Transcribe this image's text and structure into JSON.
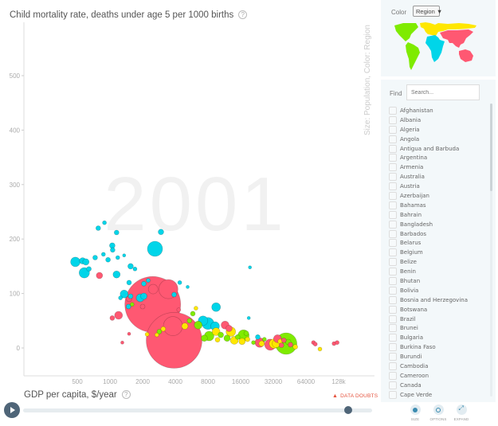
{
  "chart": {
    "y_title": "Child mortality rate, deaths under age 5 per 1000 births",
    "x_title": "GDP per capita, $/year",
    "side_label": "Size: Population, Color: Region",
    "year": "2001",
    "help_glyph": "?",
    "data_doubts": "DATA DOUBTS",
    "warn_glyph": "▲"
  },
  "timeline": {
    "play_label": "play",
    "position_year": "2001"
  },
  "sidebar": {
    "color_label": "Color",
    "color_select_value": "Region ▼",
    "find_label": "Find",
    "search_placeholder": "Search...",
    "countries": [
      "Afghanistan",
      "Albania",
      "Algeria",
      "Angola",
      "Antigua and Barbuda",
      "Argentina",
      "Armenia",
      "Australia",
      "Austria",
      "Azerbaijan",
      "Bahamas",
      "Bahrain",
      "Bangladesh",
      "Barbados",
      "Belarus",
      "Belgium",
      "Belize",
      "Benin",
      "Bhutan",
      "Bolivia",
      "Bosnia and Herzegovina",
      "Botswana",
      "Brazil",
      "Brunei",
      "Bulgaria",
      "Burkina Faso",
      "Burundi",
      "Cambodia",
      "Cameroon",
      "Canada",
      "Cape Verde"
    ],
    "buttons": {
      "size": "SIZE",
      "options": "OPTIONS",
      "expand": "EXPAND"
    }
  },
  "colors": {
    "africa": "#00d5e9",
    "asia": "#ff5872",
    "europe": "#ffe700",
    "americas": "#7feb00"
  },
  "chart_data": {
    "type": "scatter",
    "title": "Child mortality rate, deaths under age 5 per 1000 births",
    "xlabel": "GDP per capita, $/year",
    "ylabel": "Child mortality rate, deaths under age 5 per 1000 births",
    "x_scale": "log",
    "x_ticks": [
      500,
      1000,
      2000,
      4000,
      8000,
      16000,
      32000,
      64000,
      128000
    ],
    "x_tick_labels": [
      "500",
      "1000",
      "2000",
      "4000",
      "8000",
      "16000",
      "32000",
      "64000",
      "128k"
    ],
    "y_ticks": [
      0,
      100,
      200,
      300,
      400,
      500
    ],
    "xlim": [
      300,
      200000
    ],
    "ylim": [
      -50,
      600
    ],
    "size": "Population",
    "color": "Region",
    "year": 2001,
    "legend": [
      "africa",
      "asia",
      "europe",
      "americas"
    ],
    "points": [
      {
        "x": 890,
        "y": 230,
        "r": 2.5,
        "c": "africa"
      },
      {
        "x": 780,
        "y": 220,
        "r": 3,
        "c": "africa"
      },
      {
        "x": 1150,
        "y": 212,
        "r": 3,
        "c": "africa"
      },
      {
        "x": 2950,
        "y": 213,
        "r": 3.5,
        "c": "africa"
      },
      {
        "x": 2600,
        "y": 182,
        "r": 9.5,
        "c": "africa"
      },
      {
        "x": 1050,
        "y": 188,
        "r": 3.5,
        "c": "africa"
      },
      {
        "x": 1060,
        "y": 180,
        "r": 3,
        "c": "africa"
      },
      {
        "x": 1350,
        "y": 170,
        "r": 2,
        "c": "africa"
      },
      {
        "x": 730,
        "y": 166,
        "r": 3,
        "c": "africa"
      },
      {
        "x": 870,
        "y": 172,
        "r": 2.5,
        "c": "africa"
      },
      {
        "x": 960,
        "y": 162,
        "r": 3,
        "c": "africa"
      },
      {
        "x": 1180,
        "y": 166,
        "r": 2.5,
        "c": "africa"
      },
      {
        "x": 480,
        "y": 158,
        "r": 6,
        "c": "africa"
      },
      {
        "x": 560,
        "y": 160,
        "r": 4,
        "c": "africa"
      },
      {
        "x": 600,
        "y": 158,
        "r": 4,
        "c": "africa"
      },
      {
        "x": 1550,
        "y": 150,
        "r": 3.5,
        "c": "africa"
      },
      {
        "x": 1700,
        "y": 145,
        "r": 2.5,
        "c": "africa"
      },
      {
        "x": 580,
        "y": 138,
        "r": 6.5,
        "c": "africa"
      },
      {
        "x": 640,
        "y": 145,
        "r": 3,
        "c": "africa"
      },
      {
        "x": 800,
        "y": 133,
        "r": 4,
        "c": "asia"
      },
      {
        "x": 1150,
        "y": 135,
        "r": 4.5,
        "c": "africa"
      },
      {
        "x": 1500,
        "y": 120,
        "r": 3,
        "c": "africa"
      },
      {
        "x": 2050,
        "y": 118,
        "r": 3,
        "c": "africa"
      },
      {
        "x": 2250,
        "y": 124,
        "r": 2.5,
        "c": "africa"
      },
      {
        "x": 1350,
        "y": 99,
        "r": 5,
        "c": "africa"
      },
      {
        "x": 2500,
        "y": 108,
        "r": 6,
        "c": "asia"
      },
      {
        "x": 1250,
        "y": 92,
        "r": 2.5,
        "c": "africa"
      },
      {
        "x": 1550,
        "y": 95,
        "r": 3,
        "c": "africa"
      },
      {
        "x": 2480,
        "y": 80,
        "r": 35,
        "c": "asia"
      },
      {
        "x": 3450,
        "y": 108,
        "r": 12,
        "c": "asia"
      },
      {
        "x": 1900,
        "y": 92,
        "r": 5,
        "c": "africa"
      },
      {
        "x": 2050,
        "y": 95,
        "r": 4,
        "c": "africa"
      },
      {
        "x": 2000,
        "y": 76,
        "r": 3,
        "c": "asia"
      },
      {
        "x": 1500,
        "y": 90,
        "r": 3.5,
        "c": "asia"
      },
      {
        "x": 1480,
        "y": 76,
        "r": 3,
        "c": "africa"
      },
      {
        "x": 1600,
        "y": 80,
        "r": 2.5,
        "c": "americas"
      },
      {
        "x": 4400,
        "y": 120,
        "r": 2.5,
        "c": "africa"
      },
      {
        "x": 5200,
        "y": 112,
        "r": 2,
        "c": "africa"
      },
      {
        "x": 3900,
        "y": 98,
        "r": 3,
        "c": "africa"
      },
      {
        "x": 1050,
        "y": 55,
        "r": 3,
        "c": "asia"
      },
      {
        "x": 1200,
        "y": 60,
        "r": 5,
        "c": "asia"
      },
      {
        "x": 4300,
        "y": 70,
        "r": 2.5,
        "c": "asia"
      },
      {
        "x": 3800,
        "y": 40,
        "r": 12,
        "c": "asia"
      },
      {
        "x": 3900,
        "y": 14,
        "r": 35,
        "c": "asia"
      },
      {
        "x": 4900,
        "y": 40,
        "r": 4,
        "c": "europe"
      },
      {
        "x": 5800,
        "y": 63,
        "r": 3,
        "c": "americas"
      },
      {
        "x": 6200,
        "y": 73,
        "r": 2.5,
        "c": "europe"
      },
      {
        "x": 7200,
        "y": 50,
        "r": 6,
        "c": "africa"
      },
      {
        "x": 6500,
        "y": 42,
        "r": 5,
        "c": "americas"
      },
      {
        "x": 5400,
        "y": 50,
        "r": 3,
        "c": "americas"
      },
      {
        "x": 2850,
        "y": 30,
        "r": 3,
        "c": "americas"
      },
      {
        "x": 3100,
        "y": 35,
        "r": 3,
        "c": "europe"
      },
      {
        "x": 2700,
        "y": 24,
        "r": 2.5,
        "c": "europe"
      },
      {
        "x": 2200,
        "y": 25,
        "r": 2.5,
        "c": "europe"
      },
      {
        "x": 1500,
        "y": 26,
        "r": 2,
        "c": "asia"
      },
      {
        "x": 9500,
        "y": 75,
        "r": 5.5,
        "c": "africa"
      },
      {
        "x": 8000,
        "y": 45,
        "r": 7.5,
        "c": "africa"
      },
      {
        "x": 9300,
        "y": 40,
        "r": 5.5,
        "c": "africa"
      },
      {
        "x": 9500,
        "y": 30,
        "r": 5,
        "c": "europe"
      },
      {
        "x": 8200,
        "y": 22,
        "r": 6,
        "c": "americas"
      },
      {
        "x": 7400,
        "y": 18,
        "r": 4,
        "c": "americas"
      },
      {
        "x": 9800,
        "y": 15,
        "r": 3,
        "c": "europe"
      },
      {
        "x": 10500,
        "y": 24,
        "r": 3.5,
        "c": "americas"
      },
      {
        "x": 11500,
        "y": 42,
        "r": 5,
        "c": "asia"
      },
      {
        "x": 12500,
        "y": 36,
        "r": 4,
        "c": "asia"
      },
      {
        "x": 13000,
        "y": 30,
        "r": 6,
        "c": "europe"
      },
      {
        "x": 12000,
        "y": 18,
        "r": 4,
        "c": "americas"
      },
      {
        "x": 14000,
        "y": 14,
        "r": 5,
        "c": "europe"
      },
      {
        "x": 15000,
        "y": 20,
        "r": 3,
        "c": "americas"
      },
      {
        "x": 17000,
        "y": 23,
        "r": 7,
        "c": "americas"
      },
      {
        "x": 16500,
        "y": 12,
        "r": 4,
        "c": "europe"
      },
      {
        "x": 18500,
        "y": 16,
        "r": 3,
        "c": "europe"
      },
      {
        "x": 18000,
        "y": 27,
        "r": 3,
        "c": "americas"
      },
      {
        "x": 19000,
        "y": 55,
        "r": 2,
        "c": "africa"
      },
      {
        "x": 19500,
        "y": 148,
        "r": 2,
        "c": "africa"
      },
      {
        "x": 21000,
        "y": 10,
        "r": 2.5,
        "c": "americas"
      },
      {
        "x": 23000,
        "y": 20,
        "r": 3,
        "c": "africa"
      },
      {
        "x": 24000,
        "y": 10,
        "r": 6,
        "c": "asia"
      },
      {
        "x": 25000,
        "y": 8,
        "r": 3.5,
        "c": "europe"
      },
      {
        "x": 26500,
        "y": 16,
        "r": 2.5,
        "c": "americas"
      },
      {
        "x": 30000,
        "y": 6,
        "r": 7,
        "c": "asia"
      },
      {
        "x": 32500,
        "y": 8,
        "r": 6,
        "c": "europe"
      },
      {
        "x": 34000,
        "y": 8,
        "r": 5,
        "c": "europe"
      },
      {
        "x": 35000,
        "y": 17,
        "r": 5,
        "c": "asia"
      },
      {
        "x": 37000,
        "y": 12,
        "r": 3,
        "c": "europe"
      },
      {
        "x": 38000,
        "y": 5,
        "r": 3,
        "c": "asia"
      },
      {
        "x": 42000,
        "y": 8,
        "r": 13.5,
        "c": "americas"
      },
      {
        "x": 40000,
        "y": 14,
        "r": 3,
        "c": "asia"
      },
      {
        "x": 44000,
        "y": 11,
        "r": 3.5,
        "c": "americas"
      },
      {
        "x": 46000,
        "y": 6,
        "r": 3,
        "c": "asia"
      },
      {
        "x": 51000,
        "y": 2,
        "r": 3,
        "c": "europe"
      },
      {
        "x": 75000,
        "y": 10,
        "r": 2.5,
        "c": "asia"
      },
      {
        "x": 78000,
        "y": 7,
        "r": 2.5,
        "c": "asia"
      },
      {
        "x": 86000,
        "y": -2,
        "r": 2.5,
        "c": "europe"
      },
      {
        "x": 116000,
        "y": 8,
        "r": 2.5,
        "c": "asia"
      },
      {
        "x": 124000,
        "y": 10,
        "r": 2.5,
        "c": "asia"
      },
      {
        "x": 1300,
        "y": 10,
        "r": 2,
        "c": "asia"
      }
    ]
  }
}
